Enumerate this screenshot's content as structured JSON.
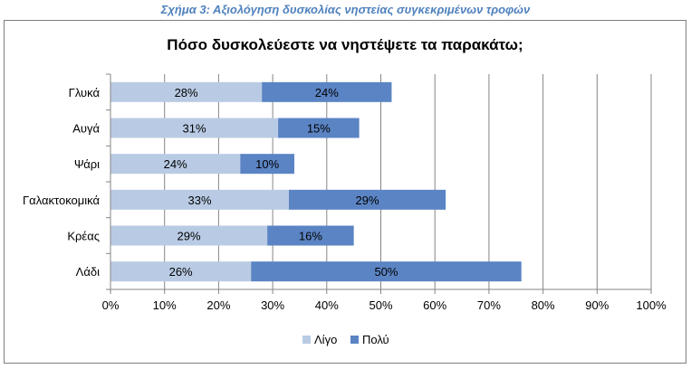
{
  "caption": "Σχήμα 3: Αξιολόγηση δυσκολίας νηστείας συγκεκριμένων τροφών",
  "chart_data": {
    "type": "bar",
    "orientation": "horizontal",
    "stacked": true,
    "title": "Πόσο δυσκολεύεστε να νηστέψετε τα παρακάτω;",
    "categories": [
      "Γλυκά",
      "Αυγά",
      "Ψάρι",
      "Γαλακτοκομικά",
      "Κρέας",
      "Λάδι"
    ],
    "series": [
      {
        "name": "Λίγο",
        "values": [
          28,
          31,
          24,
          33,
          29,
          26
        ],
        "labels": [
          "28%",
          "31%",
          "24%",
          "33%",
          "29%",
          "26%"
        ],
        "color": "#b9cbe4"
      },
      {
        "name": "Πολύ",
        "values": [
          24,
          15,
          10,
          29,
          16,
          50
        ],
        "labels": [
          "24%",
          "15%",
          "10%",
          "29%",
          "16%",
          "50%"
        ],
        "color": "#5b84c4"
      }
    ],
    "xlim": [
      0,
      100
    ],
    "xticks": [
      "0%",
      "10%",
      "20%",
      "30%",
      "40%",
      "50%",
      "60%",
      "70%",
      "80%",
      "90%",
      "100%"
    ],
    "grid": true,
    "legend": "bottom"
  }
}
